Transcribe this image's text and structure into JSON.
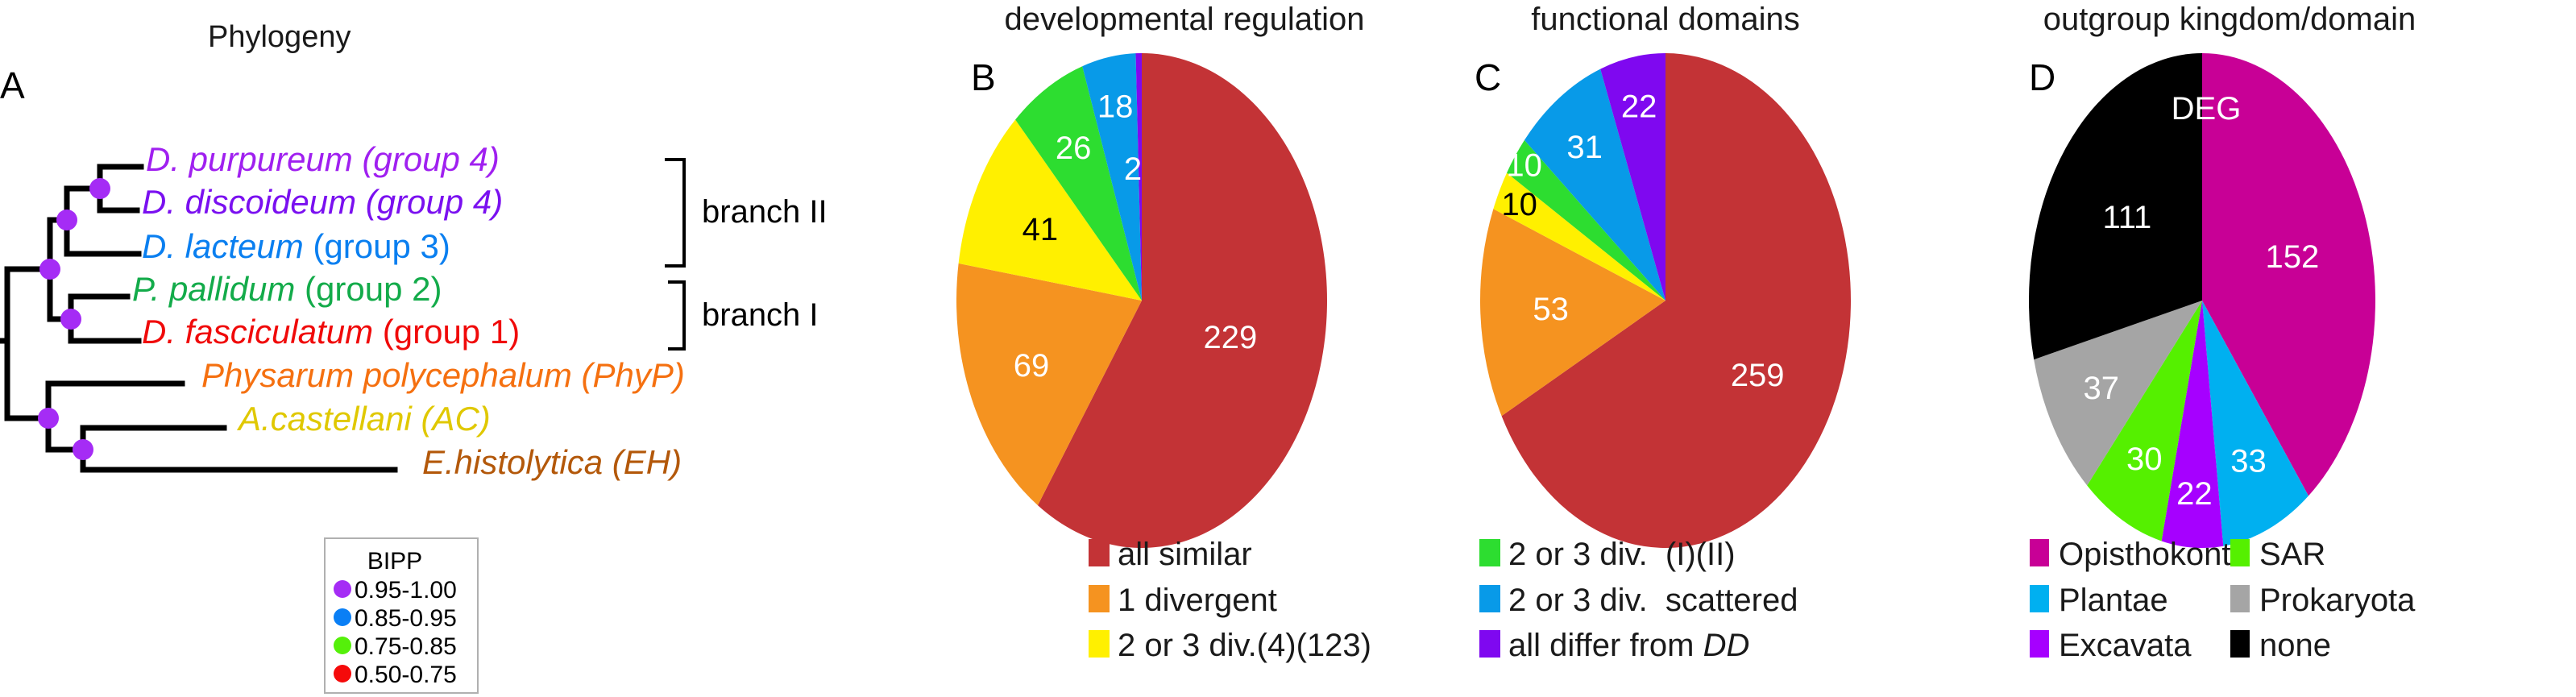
{
  "panel_a": {
    "letter": "A",
    "title": "Phylogeny",
    "taxa": [
      {
        "italic": "D. purpureum",
        "suffix": " (group 4)",
        "suffix_italic": true,
        "color": "#a020f0"
      },
      {
        "italic": "D. discoideum",
        "suffix": "  (group 4)",
        "suffix_italic": true,
        "color": "#7a10f0"
      },
      {
        "italic": "D. lacteum",
        "suffix": " (group 3)",
        "suffix_italic": false,
        "color": "#0a7ff0"
      },
      {
        "italic": "P. pallidum",
        "suffix": " (group 2)",
        "suffix_italic": false,
        "color": "#13ab4a"
      },
      {
        "italic": "D. fasciculatum",
        "suffix": " (group 1)",
        "suffix_italic": false,
        "color": "#f00a0a"
      },
      {
        "italic": "Physarum polycephalum (PhyP)",
        "suffix": "",
        "suffix_italic": true,
        "color": "#f57010"
      },
      {
        "italic": "A.castellani (AC)",
        "suffix": "",
        "suffix_italic": true,
        "color": "#e0c800"
      },
      {
        "italic": "E.histolytica (EH)",
        "suffix": "",
        "suffix_italic": true,
        "color": "#b3580a"
      }
    ],
    "brackets": [
      {
        "label": "branch II"
      },
      {
        "label": "branch I"
      }
    ],
    "node_color": "#a52cf5",
    "legend": {
      "title": "BIPP",
      "items": [
        {
          "label": "0.95-1.00",
          "color": "#a52cf5"
        },
        {
          "label": "0.85-0.95",
          "color": "#0a7ff5"
        },
        {
          "label": "0.75-0.85",
          "color": "#55f00a"
        },
        {
          "label": "0.50-0.75",
          "color": "#f50a0a"
        }
      ]
    }
  },
  "chart_data": [
    {
      "type": "pie",
      "letter": "B",
      "title": "developmental regulation",
      "slices": [
        {
          "label": "all similar",
          "value": 229,
          "color": "#c33336",
          "text_color": "#ffffff"
        },
        {
          "label": "1 divergent",
          "value": 69,
          "color": "#f59320",
          "text_color": "#ffffff"
        },
        {
          "label": "2 or 3 div.(4)(123)",
          "value": 41,
          "color": "#fff000",
          "text_color": "#000000"
        },
        {
          "label": "2 or 3 div.  (I)(II)",
          "value": 26,
          "color": "#2ddd30",
          "text_color": "#ffffff"
        },
        {
          "label": "2 or 3 div.  scattered",
          "value": 18,
          "color": "#089ae8",
          "text_color": "#ffffff"
        },
        {
          "label": "all differ from DD",
          "value": 2,
          "color": "#7f08f0",
          "text_color": "#ffffff"
        }
      ],
      "legend": [
        "all similar",
        "1 divergent",
        "2 or 3 div.(4)(123)"
      ]
    },
    {
      "type": "pie",
      "letter": "C",
      "title": "functional domains",
      "slices": [
        {
          "label": "all similar",
          "value": 259,
          "color": "#c33336",
          "text_color": "#ffffff"
        },
        {
          "label": "1 divergent",
          "value": 53,
          "color": "#f59320",
          "text_color": "#ffffff"
        },
        {
          "label": "2 or 3 div.(4)(123)",
          "value": 10,
          "color": "#fff000",
          "text_color": "#000000"
        },
        {
          "label": "2 or 3 div.  (I)(II)",
          "value": 10,
          "color": "#2ddd30",
          "text_color": "#ffffff"
        },
        {
          "label": "2 or 3 div.  scattered",
          "value": 31,
          "color": "#089ae8",
          "text_color": "#ffffff"
        },
        {
          "label": "all differ from DD",
          "value": 22,
          "color": "#7f08f0",
          "text_color": "#ffffff"
        }
      ],
      "legend": [
        {
          "prefix": "2 or 3 div.  (I)(II)",
          "italic": ""
        },
        {
          "prefix": "2 or 3 div.  scattered",
          "italic": ""
        },
        {
          "prefix": "all differ from ",
          "italic": "DD"
        }
      ]
    },
    {
      "type": "pie",
      "letter": "D",
      "title": "outgroup kingdom/domain",
      "center_label": "DEG",
      "slices": [
        {
          "label": "Opisthokonta",
          "value": 152,
          "color": "#c80096",
          "text_color": "#ffffff"
        },
        {
          "label": "Plantae",
          "value": 33,
          "color": "#00b0f0",
          "text_color": "#ffffff"
        },
        {
          "label": "Excavata",
          "value": 22,
          "color": "#a600ff",
          "text_color": "#ffffff"
        },
        {
          "label": "SAR",
          "value": 30,
          "color": "#55f000",
          "text_color": "#ffffff"
        },
        {
          "label": "Prokaryota",
          "value": 37,
          "color": "#a5a5a5",
          "text_color": "#ffffff"
        },
        {
          "label": "none",
          "value": 111,
          "color": "#000000",
          "text_color": "#ffffff"
        }
      ],
      "legend_columns": [
        [
          "Opisthokonta",
          "Plantae",
          "Excavata"
        ],
        [
          "SAR",
          "Prokaryota",
          "none"
        ]
      ]
    }
  ]
}
